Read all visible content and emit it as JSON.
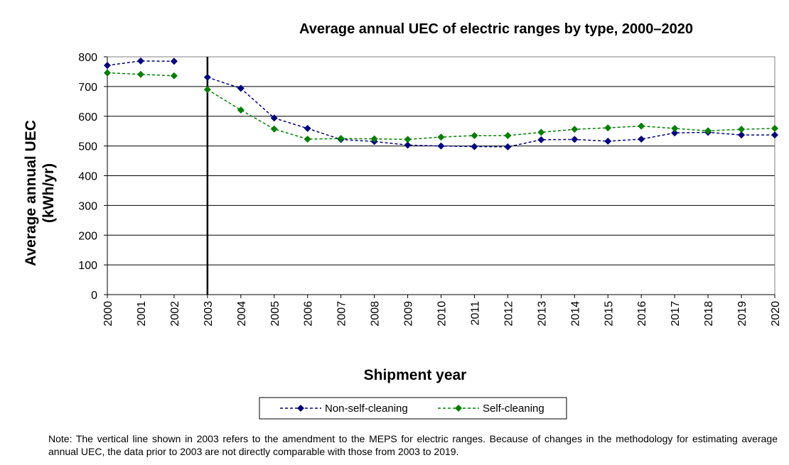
{
  "chart_data": {
    "type": "line",
    "title": "Average annual UEC of electric ranges by type, 2000–2020",
    "xlabel": "Shipment year",
    "ylabel": [
      "Average annual UEC",
      "(kWh/yr)"
    ],
    "ylim": [
      0,
      800
    ],
    "yticks": [
      0,
      100,
      200,
      300,
      400,
      500,
      600,
      700,
      800
    ],
    "x": [
      "2000",
      "2001",
      "2002",
      "2003",
      "2004",
      "2005",
      "2006",
      "2007",
      "2008",
      "2009",
      "2010",
      "2011",
      "2012",
      "2013",
      "2014",
      "2015",
      "2016",
      "2017",
      "2018",
      "2019",
      "2020"
    ],
    "grid": "horizontal",
    "legend_position": "bottom",
    "reference_line": {
      "x": "2003"
    },
    "series": [
      {
        "name": "Non-self-cleaning",
        "color": "#000080",
        "marker": "diamond",
        "segments": [
          {
            "x": [
              "2000",
              "2001",
              "2002"
            ],
            "values": [
              771,
              786,
              785
            ]
          },
          {
            "x": [
              "2003",
              "2004",
              "2005",
              "2006",
              "2007",
              "2008",
              "2009",
              "2010",
              "2011",
              "2012",
              "2013",
              "2014",
              "2015",
              "2016",
              "2017",
              "2018",
              "2019",
              "2020"
            ],
            "values": [
              731,
              694,
              594,
              559,
              522,
              515,
              503,
              500,
              498,
              497,
              521,
              522,
              516,
              523,
              544,
              546,
              537,
              537
            ]
          }
        ]
      },
      {
        "name": "Self-cleaning",
        "color": "#008000",
        "marker": "diamond",
        "segments": [
          {
            "x": [
              "2000",
              "2001",
              "2002"
            ],
            "values": [
              746,
              741,
              736
            ]
          },
          {
            "x": [
              "2003",
              "2004",
              "2005",
              "2006",
              "2007",
              "2008",
              "2009",
              "2010",
              "2011",
              "2012",
              "2013",
              "2014",
              "2015",
              "2016",
              "2017",
              "2018",
              "2019",
              "2020"
            ],
            "values": [
              690,
              621,
              557,
              523,
              525,
              524,
              522,
              530,
              535,
              535,
              546,
              556,
              561,
              567,
              559,
              551,
              556,
              559
            ]
          }
        ]
      }
    ]
  },
  "note": "Note: The vertical line shown in 2003 refers to the amendment to the MEPS for electric ranges. Because of changes in the methodology for estimating average annual UEC, the data prior to 2003 are not directly comparable with those from 2003 to 2019."
}
